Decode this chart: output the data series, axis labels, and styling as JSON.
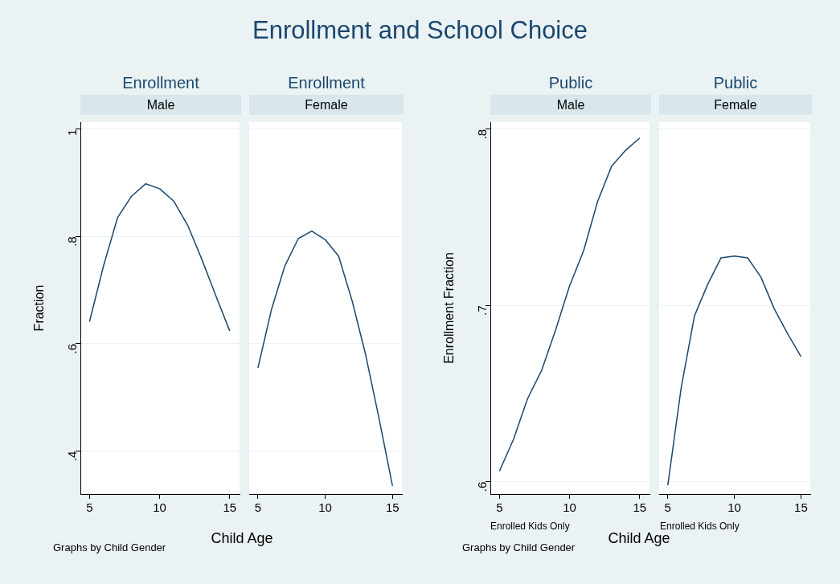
{
  "chart_data": [
    {
      "type": "line",
      "title": "Enrollment",
      "subtitle": "Male",
      "ylabel": "Fraction",
      "annotations": [
        "Enrollment and School Choice",
        "Graphs by Child Gender"
      ],
      "x": [
        5,
        6,
        7,
        8,
        9,
        10,
        11,
        12,
        13,
        14,
        15
      ],
      "series": [
        {
          "color": "#1a476f",
          "values": [
            0.641,
            0.745,
            0.835,
            0.875,
            0.898,
            0.889,
            0.866,
            0.821,
            0.758,
            0.69,
            0.624
          ]
        }
      ],
      "xlim": [
        4.35,
        15.7
      ],
      "xticks": [
        5,
        10,
        15
      ],
      "ylim": [
        0.32,
        1.013
      ],
      "yticks": [
        {
          "value": 0.4,
          "label": ".4"
        },
        {
          "value": 0.6,
          "label": ".6"
        },
        {
          "value": 0.8,
          "label": ".8"
        },
        1
      ],
      "grid": "y"
    },
    {
      "type": "line",
      "title": "Enrollment",
      "subtitle": "Female",
      "xlabel": "Child Age",
      "x": [
        5,
        6,
        7,
        8,
        9,
        10,
        11,
        12,
        13,
        14,
        15
      ],
      "series": [
        {
          "color": "#1a476f",
          "values": [
            0.555,
            0.663,
            0.745,
            0.796,
            0.81,
            0.794,
            0.763,
            0.68,
            0.58,
            0.461,
            0.335
          ]
        }
      ],
      "xlim": [
        4.35,
        15.7
      ],
      "xticks": [
        5,
        10,
        15
      ],
      "ylim": [
        0.32,
        1.013
      ],
      "yticks": [
        0.4,
        0.6,
        0.8,
        1
      ],
      "grid": "y",
      "tick_labels": "x"
    },
    {
      "type": "line",
      "title": "Public",
      "subtitle": "Male",
      "ylabel": "Enrollment Fraction",
      "xlabel": "Enrolled Kids Only",
      "annotations": [
        "Graphs by Child Gender"
      ],
      "x": [
        5,
        6,
        7,
        8,
        9,
        10,
        11,
        12,
        13,
        14,
        15
      ],
      "series": [
        {
          "color": "#1a476f",
          "values": [
            0.606,
            0.624,
            0.647,
            0.663,
            0.686,
            0.711,
            0.731,
            0.759,
            0.779,
            0.788,
            0.795
          ]
        }
      ],
      "xlim": [
        4.35,
        15.7
      ],
      "xticks": [
        5,
        10,
        15
      ],
      "ylim": [
        0.593,
        0.804
      ],
      "yticks": [
        {
          "value": 0.6,
          "label": ".6"
        },
        {
          "value": 0.7,
          "label": ".7"
        },
        {
          "value": 0.8,
          "label": ".8"
        }
      ],
      "grid": "y"
    },
    {
      "type": "line",
      "title": "Public",
      "subtitle": "Female",
      "xlabel": "Enrolled Kids Only",
      "annotations": [
        "Child Age"
      ],
      "x": [
        5,
        6,
        7,
        8,
        9,
        10,
        11,
        12,
        13,
        14,
        15
      ],
      "series": [
        {
          "color": "#1a476f",
          "values": [
            0.598,
            0.653,
            0.694,
            0.712,
            0.727,
            0.728,
            0.727,
            0.716,
            0.698,
            0.684,
            0.671
          ]
        }
      ],
      "xlim": [
        4.35,
        15.7
      ],
      "xticks": [
        5,
        10,
        15
      ],
      "ylim": [
        0.593,
        0.804
      ],
      "yticks": [
        0.6,
        0.7,
        0.8
      ],
      "grid": "y",
      "tick_labels": "x"
    }
  ]
}
